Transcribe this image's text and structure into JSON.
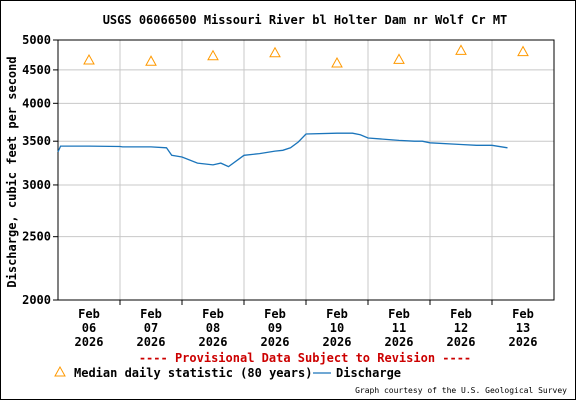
{
  "chart_data": {
    "type": "line",
    "title": "USGS 06066500 Missouri River bl Holter Dam nr Wolf Cr MT",
    "ylabel": "Discharge, cubic feet per second",
    "xlabel": "",
    "y_scale": "log",
    "ylim": [
      2000,
      5000
    ],
    "y_ticks": [
      2000,
      2500,
      3000,
      3500,
      4000,
      4500,
      5000
    ],
    "x_ticks": [
      {
        "month": "Feb",
        "day": "06",
        "year": "2026"
      },
      {
        "month": "Feb",
        "day": "07",
        "year": "2026"
      },
      {
        "month": "Feb",
        "day": "08",
        "year": "2026"
      },
      {
        "month": "Feb",
        "day": "09",
        "year": "2026"
      },
      {
        "month": "Feb",
        "day": "10",
        "year": "2026"
      },
      {
        "month": "Feb",
        "day": "11",
        "year": "2026"
      },
      {
        "month": "Feb",
        "day": "12",
        "year": "2026"
      },
      {
        "month": "Feb",
        "day": "13",
        "year": "2026"
      }
    ],
    "xlim": [
      "2026-02-05 12:00",
      "2026-02-13 12:00"
    ],
    "grid": true,
    "legend_placement": "bottom",
    "series": [
      {
        "name": "Median daily statistic (80 years)",
        "kind": "marker-triangle",
        "color": "#ff9900",
        "x": [
          "2026-02-06",
          "2026-02-07",
          "2026-02-08",
          "2026-02-09",
          "2026-02-10",
          "2026-02-11",
          "2026-02-12",
          "2026-02-13"
        ],
        "y": [
          4660,
          4640,
          4730,
          4780,
          4610,
          4670,
          4820,
          4800
        ]
      },
      {
        "name": "Discharge",
        "kind": "line",
        "color": "#1b75bb",
        "x": [
          "2026-02-05 12:00",
          "2026-02-05 13:00",
          "2026-02-06 00:00",
          "2026-02-06 12:00",
          "2026-02-06 13:00",
          "2026-02-07 00:00",
          "2026-02-07 06:00",
          "2026-02-07 08:00",
          "2026-02-07 12:00",
          "2026-02-07 18:00",
          "2026-02-08 00:00",
          "2026-02-08 03:00",
          "2026-02-08 06:00",
          "2026-02-08 12:00",
          "2026-02-08 18:00",
          "2026-02-09 00:00",
          "2026-02-09 03:00",
          "2026-02-09 06:00",
          "2026-02-09 09:00",
          "2026-02-09 12:00",
          "2026-02-10 00:00",
          "2026-02-10 06:00",
          "2026-02-10 09:00",
          "2026-02-10 12:00",
          "2026-02-11 00:00",
          "2026-02-11 06:00",
          "2026-02-11 09:00",
          "2026-02-11 12:00",
          "2026-02-12 00:00",
          "2026-02-12 06:00",
          "2026-02-12 12:00",
          "2026-02-12 18:00"
        ],
        "y": [
          3370,
          3440,
          3440,
          3435,
          3430,
          3430,
          3420,
          3330,
          3310,
          3240,
          3220,
          3240,
          3200,
          3330,
          3350,
          3380,
          3390,
          3420,
          3490,
          3590,
          3600,
          3600,
          3580,
          3540,
          3510,
          3500,
          3500,
          3480,
          3460,
          3450,
          3450,
          3420
        ]
      }
    ]
  },
  "provisional_note": "---- Provisional Data Subject to Revision ----",
  "legend": {
    "median_label": "Median daily statistic (80 years)",
    "discharge_label": "Discharge"
  },
  "credit": "Graph courtesy of the U.S. Geological Survey"
}
